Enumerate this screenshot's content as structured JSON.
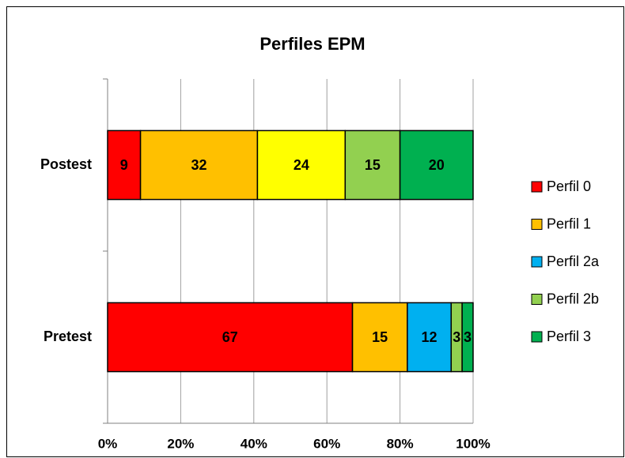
{
  "chart_data": {
    "type": "stacked_barh",
    "title": "Perfiles EPM",
    "categories": [
      "Pretest",
      "Postest"
    ],
    "series": [
      {
        "name": "Perfil 0",
        "color": "#ff0000",
        "values": [
          67,
          9
        ]
      },
      {
        "name": "Perfil 1",
        "color": "#ffc000",
        "values": [
          15,
          32
        ]
      },
      {
        "name": "Perfil 2a",
        "colors": [
          "#00b0f0",
          "#ffff00"
        ],
        "values": [
          12,
          24
        ]
      },
      {
        "name": "Perfil 2b",
        "color": "#92d050",
        "values": [
          3,
          15
        ]
      },
      {
        "name": "Perfil 3",
        "color": "#00b050",
        "values": [
          3,
          20
        ]
      }
    ],
    "xlim": [
      0,
      100
    ],
    "xticks": [
      {
        "value": 0,
        "label": "0%"
      },
      {
        "value": 20,
        "label": "20%"
      },
      {
        "value": 40,
        "label": "40%"
      },
      {
        "value": 60,
        "label": "60%"
      },
      {
        "value": 80,
        "label": "80%"
      },
      {
        "value": 100,
        "label": "100%"
      }
    ],
    "grid": true,
    "legend": "right"
  }
}
